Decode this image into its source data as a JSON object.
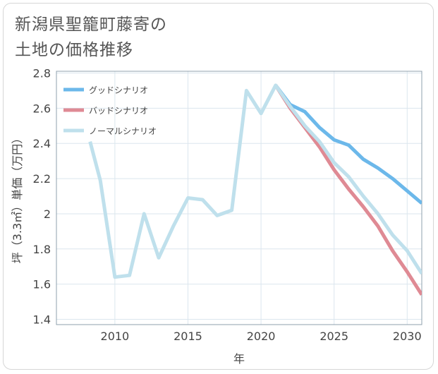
{
  "title_lines": [
    "新潟県聖籠町藤寄の",
    "土地の価格推移"
  ],
  "colors": {
    "good": "#6cb8ea",
    "bad": "#df8a94",
    "normal": "#bfe0ec",
    "grid": "#dbe6ee",
    "axis": "#8fa0ae"
  },
  "chart_data": {
    "type": "line",
    "xlabel": "年",
    "ylabel": "坪（3.3㎡）単価（万円）",
    "xlim": [
      2006,
      2031
    ],
    "ylim": [
      1.37,
      2.81
    ],
    "xticks": [
      2010,
      2015,
      2020,
      2025,
      2030
    ],
    "yticks": [
      1.4,
      1.6,
      1.8,
      2.0,
      2.2,
      2.4,
      2.6,
      2.8
    ],
    "ytick_labels": [
      "1.4",
      "1.6",
      "1.8",
      "2",
      "2.2",
      "2.4",
      "2.6",
      "2.8"
    ],
    "grid": true,
    "legend_position": "top-left",
    "series": [
      {
        "name": "グッドシナリオ",
        "color_key": "good",
        "points": [
          [
            2021,
            2.73
          ],
          [
            2022,
            2.62
          ],
          [
            2023,
            2.58
          ],
          [
            2024,
            2.49
          ],
          [
            2025,
            2.42
          ],
          [
            2026,
            2.39
          ],
          [
            2027,
            2.31
          ],
          [
            2028,
            2.26
          ],
          [
            2029,
            2.2
          ],
          [
            2030,
            2.13
          ],
          [
            2031,
            2.06
          ]
        ]
      },
      {
        "name": "バッドシナリオ",
        "color_key": "bad",
        "points": [
          [
            2021,
            2.73
          ],
          [
            2022,
            2.6
          ],
          [
            2023,
            2.49
          ],
          [
            2024,
            2.38
          ],
          [
            2025,
            2.25
          ],
          [
            2026,
            2.14
          ],
          [
            2027,
            2.04
          ],
          [
            2028,
            1.93
          ],
          [
            2029,
            1.79
          ],
          [
            2030,
            1.67
          ],
          [
            2031,
            1.54
          ]
        ]
      },
      {
        "name": "ノーマルシナリオ",
        "color_key": "normal",
        "points": [
          [
            2008.3,
            2.41
          ],
          [
            2009,
            2.19
          ],
          [
            2010,
            1.64
          ],
          [
            2011,
            1.65
          ],
          [
            2012,
            2.0
          ],
          [
            2013,
            1.75
          ],
          [
            2014,
            1.93
          ],
          [
            2015,
            2.09
          ],
          [
            2016,
            2.08
          ],
          [
            2017,
            1.99
          ],
          [
            2018,
            2.02
          ],
          [
            2019,
            2.7
          ],
          [
            2020,
            2.57
          ],
          [
            2021,
            2.73
          ],
          [
            2022,
            2.61
          ],
          [
            2023,
            2.5
          ],
          [
            2024,
            2.41
          ],
          [
            2025,
            2.29
          ],
          [
            2026,
            2.21
          ],
          [
            2027,
            2.1
          ],
          [
            2028,
            2.0
          ],
          [
            2029,
            1.88
          ],
          [
            2030,
            1.79
          ],
          [
            2031,
            1.66
          ]
        ]
      }
    ]
  }
}
